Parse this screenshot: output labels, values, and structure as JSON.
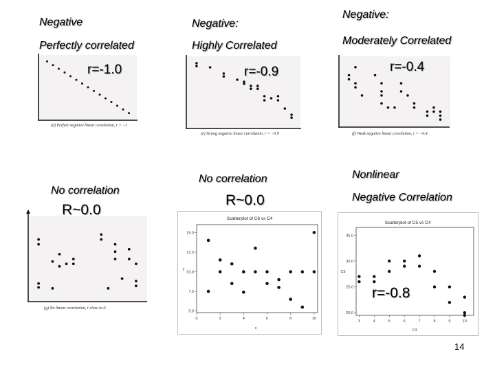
{
  "panels": [
    {
      "id": "p1",
      "heading1": "Negative",
      "heading2": "Perfectly correlated",
      "r_label": "r=-1.0",
      "caption": "(d) Perfect negative linear correlation, r = −1"
    },
    {
      "id": "p2",
      "heading1": "Negative:",
      "heading2": "Highly Correlated",
      "r_label": "r=-0.9",
      "caption": "(e) Strong negative linear correlation, r = −0.9"
    },
    {
      "id": "p3",
      "heading1": "Negative:",
      "heading2": "Moderately Correlated",
      "r_label": "r=-0.4",
      "caption": "(f) Weak negative linear correlation, r = −0.4"
    },
    {
      "id": "p4",
      "heading1": "No correlation",
      "r_label": "R~0.0",
      "caption": "(g) No linear correlation, r close to 0."
    },
    {
      "id": "p5",
      "heading1": "No correlation",
      "r_label": "R~0.0",
      "plot_title": "Scatterplot of C6 vs C4",
      "xlabel": "x",
      "ylabel": "y"
    },
    {
      "id": "p6",
      "heading1": "Nonlinear",
      "heading2": "Negative Correlation",
      "r_label": "r=-0.8",
      "plot_title": "Scatterplot of C5 vs C4",
      "xlabel": "C4",
      "ylabel": "C5"
    }
  ],
  "page_number": "14",
  "chart_data": [
    {
      "type": "scatter",
      "id": "p1",
      "xlim": [
        0,
        16
      ],
      "ylim": [
        0,
        16
      ],
      "points": [
        [
          1,
          15
        ],
        [
          2,
          14
        ],
        [
          3,
          13
        ],
        [
          4,
          12
        ],
        [
          5,
          11
        ],
        [
          6,
          10
        ],
        [
          7,
          9
        ],
        [
          8,
          8
        ],
        [
          9,
          7
        ],
        [
          10,
          6
        ],
        [
          11,
          5
        ],
        [
          12,
          4
        ],
        [
          13,
          3
        ],
        [
          14,
          2
        ],
        [
          15,
          1
        ]
      ]
    },
    {
      "type": "scatter",
      "id": "p2",
      "xlim": [
        0,
        16
      ],
      "ylim": [
        0,
        16
      ],
      "points": [
        [
          1,
          15
        ],
        [
          1,
          14.3
        ],
        [
          3,
          14
        ],
        [
          5,
          12.5
        ],
        [
          5,
          11.8
        ],
        [
          7,
          11
        ],
        [
          8,
          10.5
        ],
        [
          8,
          10
        ],
        [
          9,
          9.5
        ],
        [
          9,
          8.8
        ],
        [
          10,
          9.5
        ],
        [
          10,
          8.8
        ],
        [
          11,
          7
        ],
        [
          11,
          6
        ],
        [
          12,
          6.5
        ],
        [
          13,
          7
        ],
        [
          13,
          6
        ],
        [
          14,
          4
        ],
        [
          15,
          2.5
        ],
        [
          15,
          1.8
        ]
      ]
    },
    {
      "type": "scatter",
      "id": "p3",
      "xlim": [
        0,
        16
      ],
      "ylim": [
        0,
        16
      ],
      "points": [
        [
          1,
          12
        ],
        [
          1,
          11
        ],
        [
          2,
          14
        ],
        [
          2,
          10
        ],
        [
          2,
          9
        ],
        [
          3,
          7
        ],
        [
          5,
          12
        ],
        [
          6,
          10
        ],
        [
          6,
          8
        ],
        [
          6,
          7
        ],
        [
          6,
          5
        ],
        [
          7,
          4
        ],
        [
          8,
          4
        ],
        [
          9,
          10
        ],
        [
          9,
          8
        ],
        [
          10,
          7
        ],
        [
          11,
          5
        ],
        [
          11,
          4
        ],
        [
          13,
          3
        ],
        [
          13,
          2
        ],
        [
          14,
          4
        ],
        [
          14,
          3
        ],
        [
          15,
          3
        ],
        [
          15,
          2
        ],
        [
          15,
          1
        ]
      ]
    },
    {
      "type": "scatter",
      "id": "p4",
      "xlim": [
        0,
        16
      ],
      "ylim": [
        0,
        16
      ],
      "points": [
        [
          1,
          12
        ],
        [
          1,
          11
        ],
        [
          1,
          3
        ],
        [
          1,
          2.2
        ],
        [
          3,
          7.5
        ],
        [
          3,
          2
        ],
        [
          4,
          9
        ],
        [
          4,
          6.5
        ],
        [
          5,
          7
        ],
        [
          6,
          8
        ],
        [
          6,
          7
        ],
        [
          10,
          13
        ],
        [
          10,
          12
        ],
        [
          11,
          2
        ],
        [
          12,
          11
        ],
        [
          12,
          9.5
        ],
        [
          12,
          8
        ],
        [
          13,
          4
        ],
        [
          14,
          10
        ],
        [
          14,
          8
        ],
        [
          15,
          7
        ],
        [
          15,
          3.5
        ],
        [
          15,
          2.5
        ]
      ]
    },
    {
      "type": "scatter",
      "id": "p5",
      "title": "Scatterplot of C6 vs C4",
      "xlabel": "x",
      "ylabel": "y",
      "xlim": [
        0,
        10.3
      ],
      "ylim": [
        4.8,
        16
      ],
      "xticks": [
        0,
        2,
        4,
        6,
        8,
        10
      ],
      "yticks": [
        5,
        7.5,
        10,
        12.5,
        15
      ],
      "points": [
        [
          1,
          14
        ],
        [
          1,
          7.5
        ],
        [
          2,
          11.5
        ],
        [
          2,
          10
        ],
        [
          3,
          11
        ],
        [
          3,
          8.5
        ],
        [
          4,
          10
        ],
        [
          4,
          7.4
        ],
        [
          5,
          13
        ],
        [
          5,
          10
        ],
        [
          6,
          10
        ],
        [
          6,
          8.5
        ],
        [
          7,
          9
        ],
        [
          7,
          8
        ],
        [
          8,
          10
        ],
        [
          8,
          6.5
        ],
        [
          9,
          10
        ],
        [
          9,
          5.5
        ],
        [
          10,
          15
        ],
        [
          10,
          10
        ]
      ]
    },
    {
      "type": "scatter",
      "id": "p6",
      "title": "Scatterplot of C5 vs C4",
      "xlabel": "C4",
      "ylabel": "C5",
      "xlim": [
        2.8,
        10.6
      ],
      "ylim": [
        19.5,
        36.5
      ],
      "xticks": [
        3,
        4,
        5,
        6,
        7,
        8,
        9,
        10
      ],
      "yticks": [
        20,
        25,
        30,
        35
      ],
      "points": [
        [
          3,
          27
        ],
        [
          3,
          26
        ],
        [
          4,
          27
        ],
        [
          4,
          26
        ],
        [
          5,
          30
        ],
        [
          5,
          28
        ],
        [
          6,
          30
        ],
        [
          6,
          29
        ],
        [
          7,
          31
        ],
        [
          7,
          29
        ],
        [
          8,
          28
        ],
        [
          8,
          25
        ],
        [
          9,
          25
        ],
        [
          9,
          22
        ],
        [
          10,
          23
        ],
        [
          10,
          20
        ],
        [
          10,
          19.5
        ]
      ]
    }
  ]
}
